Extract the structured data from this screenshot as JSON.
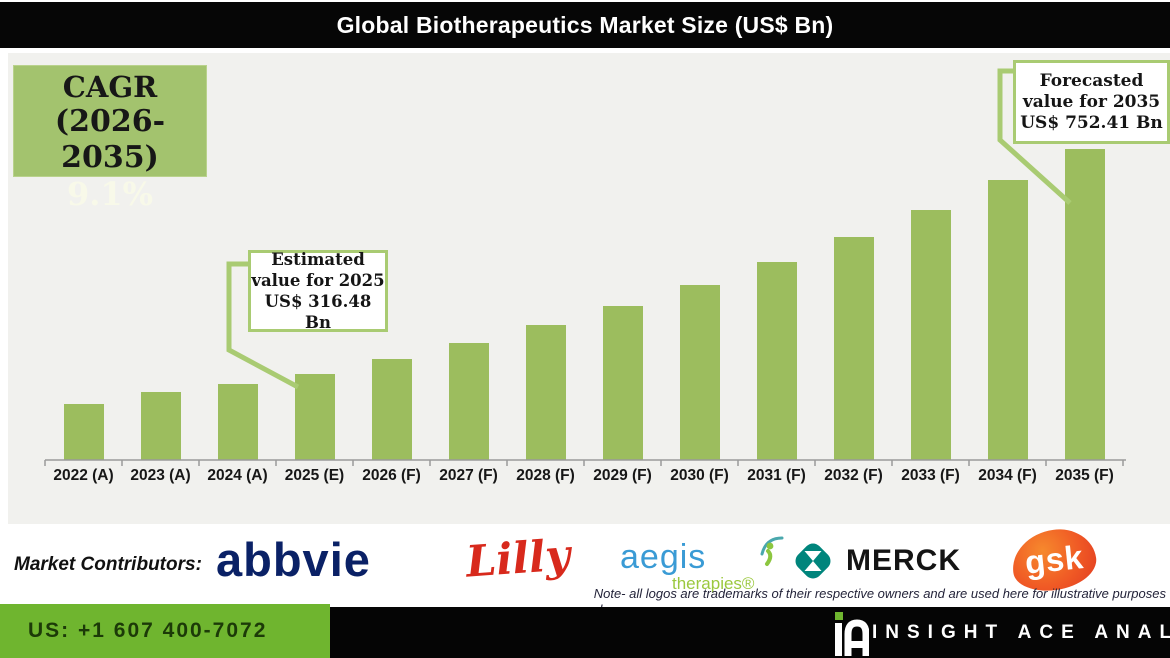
{
  "title": "Global Biotherapeutics Market Size (US$ Bn)",
  "cagr_box": {
    "line1": "CAGR",
    "line2": "(2026-2035)",
    "line3": "9.1%"
  },
  "callouts": {
    "estimated": {
      "line1": "Estimated",
      "line2": "value for 2025",
      "line3": "US$ 316.48 Bn"
    },
    "forecasted": {
      "line1": "Forecasted",
      "line2": "value for 2035",
      "line3": "US$ 752.41 Bn"
    }
  },
  "chart_data": {
    "type": "bar",
    "title": "Global Biotherapeutics Market Size (US$ Bn)",
    "unit": "US$ Bn",
    "categories": [
      "2022 (A)",
      "2023 (A)",
      "2024 (A)",
      "2025 (E)",
      "2026 (F)",
      "2027 (F)",
      "2028 (F)",
      "2029 (F)",
      "2030 (F)",
      "2031 (F)",
      "2032 (F)",
      "2033 (F)",
      "2034 (F)",
      "2035 (F)"
    ],
    "values": [
      258,
      282,
      298,
      316.48,
      345,
      377,
      411,
      448,
      489,
      534,
      582,
      635,
      693,
      752.41
    ],
    "labeled_values": {
      "2025 (E)": 316.48,
      "2035 (F)": 752.41
    },
    "cagr": "9.1%",
    "cagr_period": "2026-2035",
    "bar_color": "#9cbd5e",
    "xlabel": "",
    "ylabel": "",
    "y_axis_visible": false,
    "grid": false,
    "legend": false
  },
  "contributors": {
    "label": "Market Contributors:",
    "abbvie": "abbvie",
    "lilly": "Lilly",
    "aegis": "aegis",
    "aegis_sub": "therapies®",
    "merck": "MERCK",
    "gsk": "gsk"
  },
  "note": {
    "line1": "Note- all logos are trademarks of their respective owners and are used here for illustrative purposes",
    "line2": "only..."
  },
  "footer": {
    "phone": "US: +1 607 400-7072",
    "brand": "INSIGHT ACE ANALYTIC"
  }
}
